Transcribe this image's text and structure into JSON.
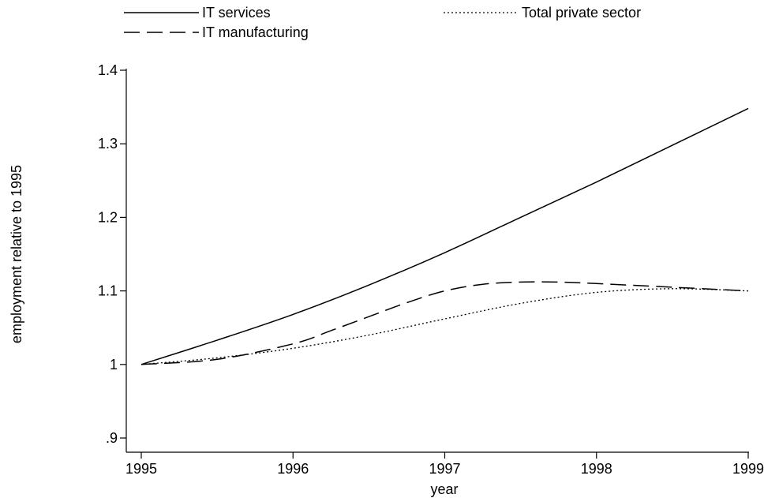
{
  "chart_data": {
    "type": "line",
    "title": "",
    "xlabel": "year",
    "ylabel": "employment relative to 1995",
    "xlim": [
      1995,
      1999
    ],
    "ylim": [
      0.9,
      1.4
    ],
    "x_ticks": [
      1995,
      1996,
      1997,
      1998,
      1999
    ],
    "y_ticks": [
      0.9,
      1.0,
      1.1,
      1.2,
      1.3,
      1.4
    ],
    "y_tick_labels": [
      ".9",
      "1",
      "1.1",
      "1.2",
      "1.3",
      "1.4"
    ],
    "grid": false,
    "legend_position": "top",
    "series": [
      {
        "name": "IT services",
        "style": "solid",
        "x": [
          1995,
          1995.5,
          1996,
          1996.5,
          1997,
          1997.5,
          1998,
          1998.5,
          1999
        ],
        "y": [
          1.0,
          1.033,
          1.068,
          1.108,
          1.152,
          1.2,
          1.248,
          1.298,
          1.348
        ]
      },
      {
        "name": "IT manufacturing",
        "style": "long-dash",
        "x": [
          1995,
          1995.5,
          1996,
          1996.25,
          1996.5,
          1996.75,
          1997,
          1997.25,
          1997.5,
          1997.75,
          1998,
          1998.5,
          1999
        ],
        "y": [
          1.0,
          1.007,
          1.028,
          1.046,
          1.065,
          1.084,
          1.1,
          1.109,
          1.112,
          1.112,
          1.11,
          1.105,
          1.1
        ],
        "dash_pattern": "20,9"
      },
      {
        "name": "Total private sector",
        "style": "dotted",
        "x": [
          1995,
          1995.5,
          1996,
          1996.5,
          1997,
          1997.5,
          1998,
          1998.5,
          1999
        ],
        "y": [
          1.0,
          1.009,
          1.022,
          1.04,
          1.062,
          1.083,
          1.098,
          1.103,
          1.1
        ],
        "dash_pattern": "2,3"
      }
    ]
  }
}
